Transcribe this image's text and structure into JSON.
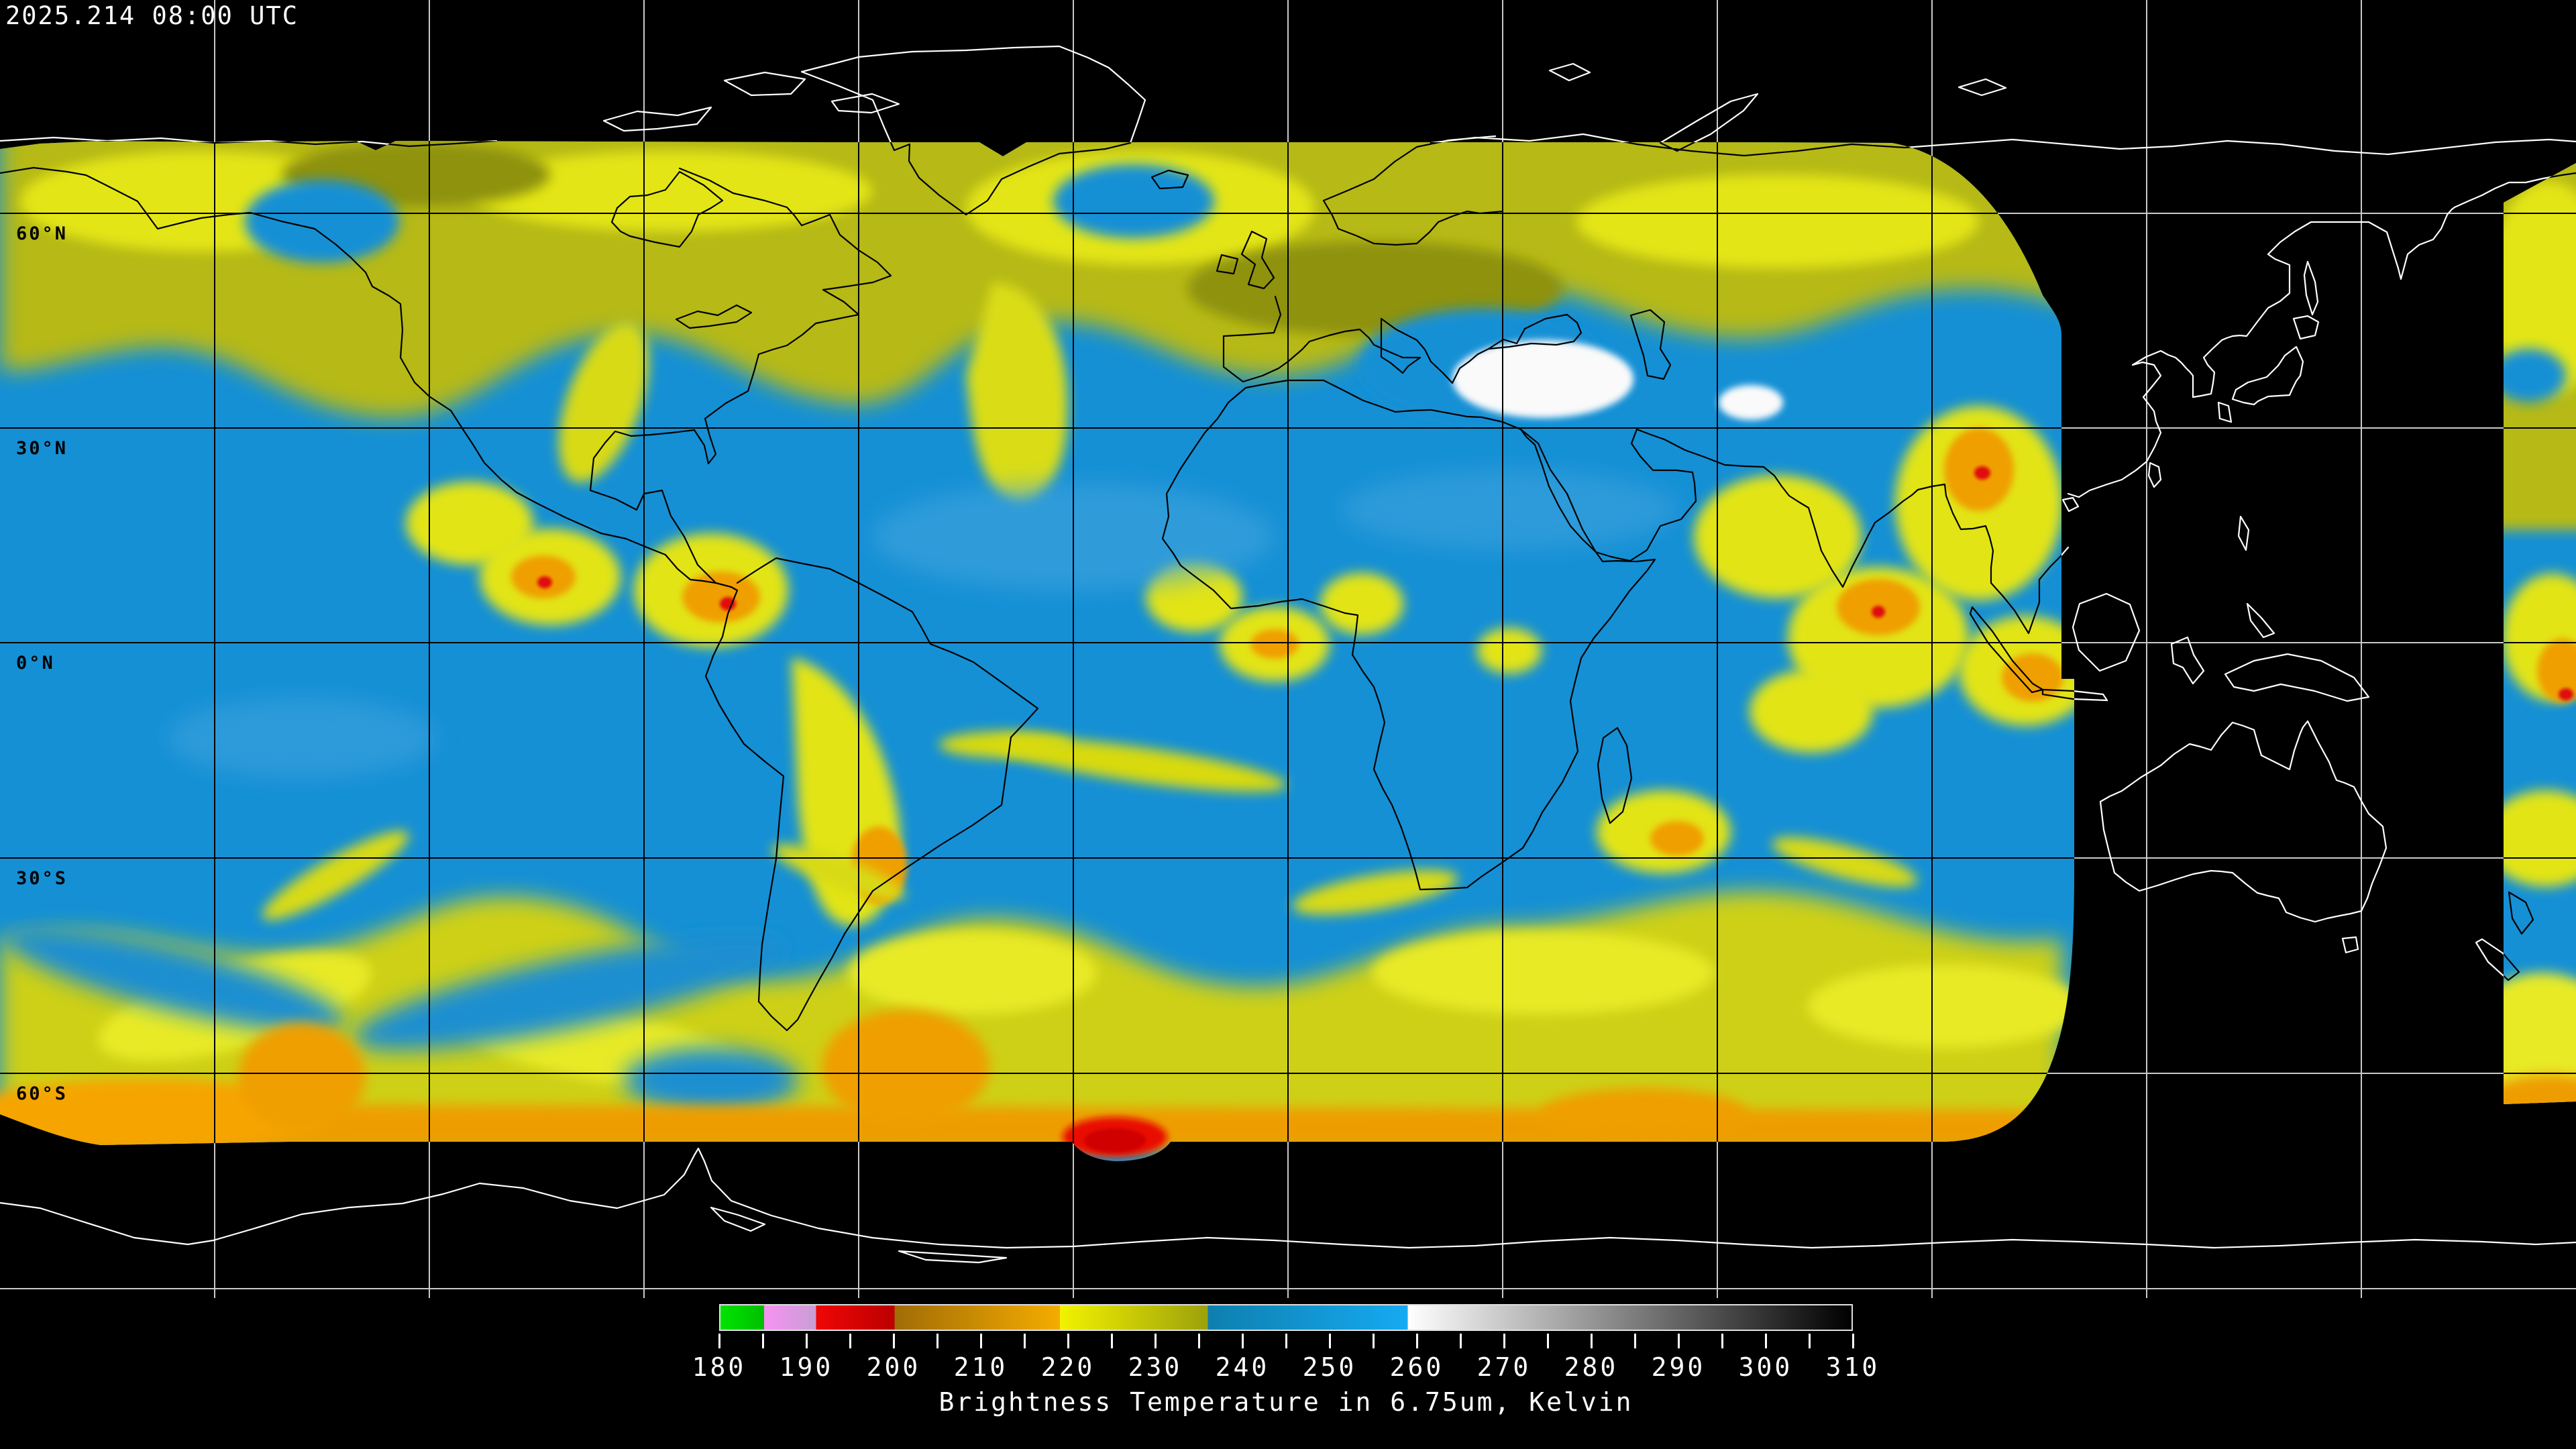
{
  "header": {
    "timestamp": "2025.214 08:00 UTC"
  },
  "map": {
    "lat_labels": [
      "60°N",
      "30°N",
      "0°N",
      "30°S",
      "60°S"
    ],
    "grid_lon_step_deg": 30,
    "grid_lat_step_deg": 30,
    "colors": {
      "background": "#000000",
      "graticule_on_space": "#c9c9c9",
      "graticule_on_data": "#000000",
      "coastline_on_space": "#ffffff",
      "coastline_on_data": "#000000",
      "moist_blue": "#1590d5",
      "dry_yellow": "#e3e518",
      "dry_olive": "#b6b913",
      "cold_orange": "#f3a303",
      "cold_red": "#e51000",
      "warm_white": "#fafafa"
    }
  },
  "colorbar": {
    "caption": "Brightness Temperature in 6.75um, Kelvin",
    "min": 180,
    "max": 310,
    "minor_tick_step": 5,
    "label_step": 10,
    "labels": [
      "180",
      "190",
      "200",
      "210",
      "220",
      "230",
      "240",
      "250",
      "260",
      "270",
      "280",
      "290",
      "300",
      "310"
    ],
    "stops": [
      {
        "v": 180,
        "c": "#00e400"
      },
      {
        "v": 185,
        "c": "#00bf00"
      },
      {
        "v": 185,
        "c": "#f792f2"
      },
      {
        "v": 191,
        "c": "#c89ed4"
      },
      {
        "v": 191,
        "c": "#ef0606"
      },
      {
        "v": 200,
        "c": "#bc0000"
      },
      {
        "v": 200,
        "c": "#a06c06"
      },
      {
        "v": 219,
        "c": "#f5ac00"
      },
      {
        "v": 219,
        "c": "#f2f200"
      },
      {
        "v": 236,
        "c": "#9da10b"
      },
      {
        "v": 236,
        "c": "#0e7fae"
      },
      {
        "v": 259,
        "c": "#16aaf2"
      },
      {
        "v": 259,
        "c": "#ffffff"
      },
      {
        "v": 310,
        "c": "#000000"
      }
    ]
  }
}
